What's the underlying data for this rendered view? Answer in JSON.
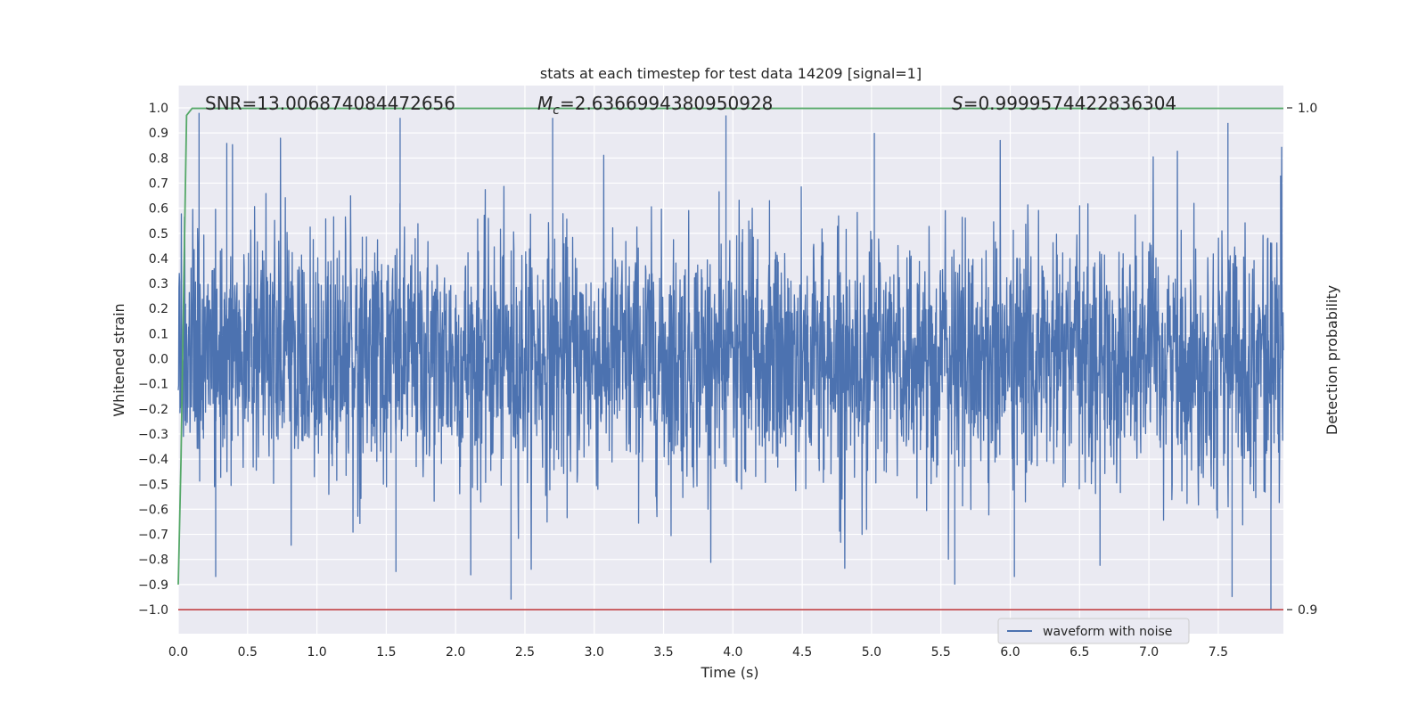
{
  "chart_data": {
    "type": "line",
    "title": "stats at each timestep for test data 14209 [signal=1]",
    "xlabel": "Time (s)",
    "ylabel": "Whitened strain",
    "y2label": "Detection probability",
    "xlim": [
      0.0,
      7.97
    ],
    "ylim": [
      -1.1,
      1.1
    ],
    "y2lim": [
      0.9,
      1.0
    ],
    "x_ticks": [
      "0.0",
      "0.5",
      "1.0",
      "1.5",
      "2.0",
      "2.5",
      "3.0",
      "3.5",
      "4.0",
      "4.5",
      "5.0",
      "5.5",
      "6.0",
      "6.5",
      "7.0",
      "7.5"
    ],
    "y_ticks": [
      "1.0",
      "0.9",
      "0.8",
      "0.7",
      "0.6",
      "0.5",
      "0.4",
      "0.3",
      "0.2",
      "0.1",
      "0.0",
      "−0.1",
      "−0.2",
      "−0.3",
      "−0.4",
      "−0.5",
      "−0.6",
      "−0.7",
      "−0.8",
      "−0.9",
      "−1.0"
    ],
    "y2_ticks": [
      "1.0",
      "0.9"
    ],
    "annotations": {
      "snr": "SNR=13.006874084472656",
      "mc_symbol": "M",
      "mc_sub": "c",
      "mc_value": "=2.6366994380950928",
      "s_symbol": "S",
      "s_value": "=0.9999574422836304"
    },
    "series": [
      {
        "name": "waveform with noise",
        "color": "#4c72b0",
        "description": "whitened strain noise, roughly symmetric about 0",
        "amplitude_typical": 0.45,
        "peak_max": 0.98,
        "peak_min": -1.0,
        "peaks": [
          {
            "x": 0.15,
            "y": 0.98
          },
          {
            "x": 0.35,
            "y": 0.86
          },
          {
            "x": 1.6,
            "y": 0.96
          },
          {
            "x": 2.7,
            "y": 0.96
          },
          {
            "x": 3.95,
            "y": 0.97
          },
          {
            "x": 5.02,
            "y": 0.9
          },
          {
            "x": 7.57,
            "y": 0.94
          },
          {
            "x": 7.95,
            "y": 0.73
          },
          {
            "x": 0.27,
            "y": -0.87
          },
          {
            "x": 1.57,
            "y": -0.85
          },
          {
            "x": 2.4,
            "y": -0.96
          },
          {
            "x": 5.6,
            "y": -0.9
          },
          {
            "x": 6.03,
            "y": -0.87
          },
          {
            "x": 7.6,
            "y": -0.95
          },
          {
            "x": 7.88,
            "y": -1.0
          }
        ]
      },
      {
        "name": "",
        "color": "#55a868",
        "axis": "right",
        "x": [
          0.0,
          0.02,
          0.04,
          0.06,
          0.1,
          7.97
        ],
        "y": [
          0.905,
          0.93,
          0.965,
          0.9985,
          0.9999,
          0.9999
        ]
      },
      {
        "name": "",
        "color": "#c44e52",
        "axis": "left",
        "x": [
          0.0,
          7.97
        ],
        "y": [
          -1.0,
          -1.0
        ]
      }
    ],
    "legend": {
      "entries": [
        "waveform with noise"
      ],
      "placement": "lower-right"
    },
    "grid": true,
    "background": "#eaeaf2"
  }
}
